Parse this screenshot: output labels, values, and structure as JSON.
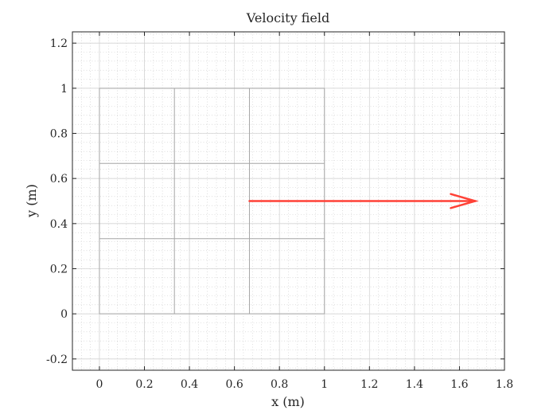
{
  "chart_data": {
    "type": "quiver",
    "title": "Velocity field",
    "xlabel": "x (m)",
    "ylabel": "y (m)",
    "xlim": [
      -0.12,
      1.8
    ],
    "ylim": [
      -0.25,
      1.25
    ],
    "xticks": [
      0,
      0.2,
      0.4,
      0.6,
      0.8,
      1,
      1.2,
      1.4,
      1.6,
      1.8
    ],
    "yticks": [
      -0.2,
      0,
      0.2,
      0.4,
      0.6,
      0.8,
      1,
      1.2
    ],
    "grid": "major and minor, dotted",
    "mesh": {
      "x_lines": [
        0,
        0.3333,
        0.6667,
        1
      ],
      "y_lines": [
        0,
        0.3333,
        0.6667,
        1
      ],
      "color": "#a6a6a6"
    },
    "vectors": [
      {
        "x0": 0.6667,
        "y0": 0.5,
        "x1": 1.67,
        "y1": 0.5,
        "color": "#ff4136"
      }
    ]
  }
}
